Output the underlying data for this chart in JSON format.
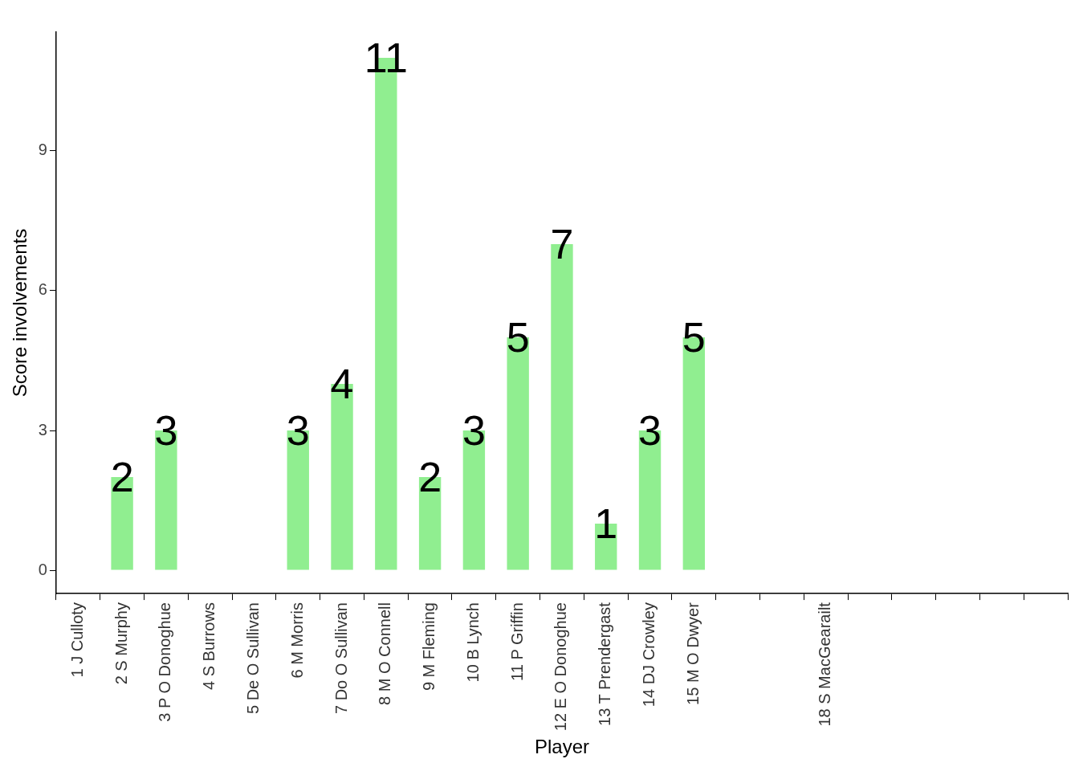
{
  "chart_data": {
    "type": "bar",
    "xlabel": "Player",
    "ylabel": "Score involvements",
    "categories": [
      "1 J Culloty",
      "2 S Murphy",
      "3 P O Donoghue",
      "4 S Burrows",
      "5 De O Sullivan",
      "6 M Morris",
      "7 Do O Sullivan",
      "8 M O Connell",
      "9 M Fleming",
      "10 B Lynch",
      "11 P Griffin",
      "12 E O Donoghue",
      "13 T Prendergast",
      "14 DJ Crowley",
      "15 M O Dwyer",
      null,
      null,
      "18 S MacGearailt",
      null,
      null,
      null,
      null,
      null
    ],
    "values": [
      null,
      2,
      3,
      null,
      null,
      3,
      4,
      11,
      2,
      3,
      5,
      7,
      1,
      3,
      5,
      null,
      null,
      null,
      null,
      null,
      null,
      null,
      null
    ],
    "color": "#90ee90",
    "ylim": [
      -0.5,
      11.55
    ],
    "yticks": [
      0,
      3,
      6,
      9
    ],
    "grid": false,
    "data_labels": true
  }
}
